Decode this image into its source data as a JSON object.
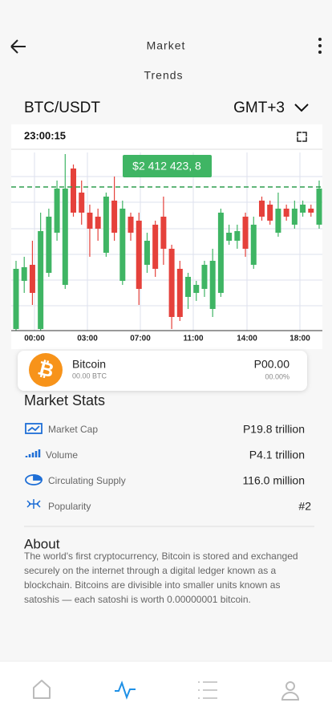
{
  "header": {
    "title": "Market",
    "subtitle": "Trends"
  },
  "pair": "BTC/USDT",
  "timezone": "GMT+3",
  "clock": "23:00:15",
  "chart_data": {
    "type": "candlestick",
    "price_label": "$2 412 423, 8",
    "time_labels": [
      "00:00",
      "03:00",
      "07:00",
      "11:00",
      "14:00",
      "18:00"
    ],
    "ylim": [
      0,
      222
    ],
    "up_color": "#3fb564",
    "down_color": "#e5413b",
    "candles": [
      {
        "open": 2,
        "close": 77,
        "high": 87,
        "low": 0
      },
      {
        "open": 62,
        "close": 79,
        "high": 92,
        "low": 47
      },
      {
        "open": 82,
        "close": 47,
        "high": 112,
        "low": 32
      },
      {
        "open": 2,
        "close": 124,
        "high": 147,
        "low": 0
      },
      {
        "open": 72,
        "close": 142,
        "high": 152,
        "low": 67
      },
      {
        "open": 122,
        "close": 177,
        "high": 187,
        "low": 112
      },
      {
        "open": 57,
        "close": 177,
        "high": 220,
        "low": 52
      },
      {
        "open": 202,
        "close": 147,
        "high": 207,
        "low": 142
      },
      {
        "open": 172,
        "close": 147,
        "high": 187,
        "low": 132
      },
      {
        "open": 147,
        "close": 127,
        "high": 157,
        "low": 92
      },
      {
        "open": 142,
        "close": 127,
        "high": 152,
        "low": 112
      },
      {
        "open": 97,
        "close": 167,
        "high": 172,
        "low": 92
      },
      {
        "open": 162,
        "close": 122,
        "high": 192,
        "low": 112
      },
      {
        "open": 62,
        "close": 152,
        "high": 162,
        "low": 57
      },
      {
        "open": 142,
        "close": 122,
        "high": 147,
        "low": 112
      },
      {
        "open": 137,
        "close": 52,
        "high": 147,
        "low": 32
      },
      {
        "open": 82,
        "close": 112,
        "high": 122,
        "low": 72
      },
      {
        "open": 132,
        "close": 77,
        "high": 137,
        "low": 67
      },
      {
        "open": 142,
        "close": 102,
        "high": 167,
        "low": 82
      },
      {
        "open": 102,
        "close": 17,
        "high": 107,
        "low": 2
      },
      {
        "open": 77,
        "close": 17,
        "high": 87,
        "low": 12
      },
      {
        "open": 42,
        "close": 67,
        "high": 72,
        "low": 27
      },
      {
        "open": 47,
        "close": 57,
        "high": 62,
        "low": 37
      },
      {
        "open": 52,
        "close": 82,
        "high": 87,
        "low": 42
      },
      {
        "open": 27,
        "close": 87,
        "high": 102,
        "low": 17
      },
      {
        "open": 47,
        "close": 147,
        "high": 152,
        "low": 42
      },
      {
        "open": 112,
        "close": 122,
        "high": 132,
        "low": 107
      },
      {
        "open": 112,
        "close": 124,
        "high": 132,
        "low": 102
      },
      {
        "open": 142,
        "close": 102,
        "high": 147,
        "low": 92
      },
      {
        "open": 82,
        "close": 132,
        "high": 142,
        "low": 77
      },
      {
        "open": 162,
        "close": 142,
        "high": 167,
        "low": 137
      },
      {
        "open": 157,
        "close": 137,
        "high": 162,
        "low": 132
      },
      {
        "open": 122,
        "close": 152,
        "high": 172,
        "low": 117
      },
      {
        "open": 152,
        "close": 142,
        "high": 157,
        "low": 137
      },
      {
        "open": 132,
        "close": 152,
        "high": 162,
        "low": 127
      },
      {
        "open": 147,
        "close": 157,
        "high": 162,
        "low": 142
      },
      {
        "open": 152,
        "close": 147,
        "high": 157,
        "low": 142
      },
      {
        "open": 132,
        "close": 177,
        "high": 187,
        "low": 127
      }
    ]
  },
  "coin": {
    "name": "Bitcoin",
    "amount": "00.00 BTC",
    "price": "P00.00",
    "change": "00.00%"
  },
  "stats": {
    "title": "Market Stats",
    "rows": [
      {
        "label": "Market Cap",
        "value": "P19.8 trillion"
      },
      {
        "label": "Volume",
        "value": "P4.1 trillion"
      },
      {
        "label": "Circulating Supply",
        "value": "116.0 million"
      },
      {
        "label": "Popularity",
        "value": "#2"
      }
    ]
  },
  "about": {
    "title": "About",
    "lines": [
      "The world's first cryptocurrency, Bitcoin is stored and exchanged",
      "securely on the internet through a digital ledger known as a",
      "blockchain. Bitcoins are divisible into smaller units known as",
      "satoshis — each satoshi is worth 0.00000001 bitcoin."
    ]
  }
}
